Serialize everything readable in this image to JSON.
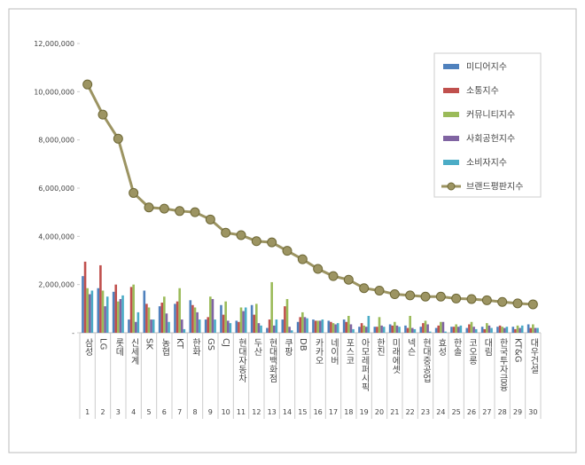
{
  "chart_data": {
    "type": "bar-line",
    "categories": [
      "삼성",
      "LG",
      "롯데",
      "신세계",
      "SK",
      "농협",
      "KT",
      "한화",
      "GS",
      "CJ",
      "현대자동차",
      "두산",
      "현대백화점",
      "쿠팡",
      "DB",
      "카카오",
      "네이버",
      "포스코",
      "아모레퍼시픽",
      "한진",
      "미래에셋",
      "넥슨",
      "현대중공업",
      "효성",
      "한솔",
      "코오롱",
      "대림",
      "한국투자금융",
      "KT&G",
      "대우건설"
    ],
    "ranks": [
      1,
      2,
      3,
      4,
      5,
      6,
      7,
      8,
      9,
      10,
      11,
      12,
      13,
      14,
      15,
      16,
      17,
      18,
      19,
      20,
      21,
      22,
      23,
      24,
      25,
      26,
      27,
      28,
      29,
      30
    ],
    "series": [
      {
        "name": "미디어지수",
        "color": "#4f81bd",
        "values": [
          2350000,
          1850000,
          1700000,
          550000,
          1750000,
          1100000,
          1200000,
          1350000,
          550000,
          1150000,
          500000,
          1150000,
          200000,
          550000,
          450000,
          550000,
          500000,
          550000,
          250000,
          250000,
          350000,
          300000,
          250000,
          200000,
          250000,
          200000,
          250000,
          250000,
          250000,
          350000
        ]
      },
      {
        "name": "소통지수",
        "color": "#c0504d",
        "values": [
          2950000,
          2800000,
          2000000,
          1900000,
          1200000,
          1250000,
          1300000,
          1150000,
          650000,
          750000,
          450000,
          750000,
          550000,
          1100000,
          650000,
          500000,
          450000,
          450000,
          400000,
          250000,
          300000,
          200000,
          400000,
          300000,
          250000,
          350000,
          150000,
          300000,
          150000,
          200000
        ]
      },
      {
        "name": "커뮤니티지수",
        "color": "#9bbb59",
        "values": [
          1850000,
          1750000,
          1300000,
          2000000,
          1050000,
          1500000,
          1850000,
          1050000,
          1500000,
          1300000,
          1050000,
          1200000,
          2100000,
          1400000,
          850000,
          500000,
          400000,
          700000,
          300000,
          650000,
          450000,
          700000,
          500000,
          450000,
          350000,
          450000,
          400000,
          250000,
          300000,
          350000
        ]
      },
      {
        "name": "사회공헌지수",
        "color": "#8064a2",
        "values": [
          1600000,
          1100000,
          1400000,
          450000,
          550000,
          800000,
          550000,
          850000,
          1400000,
          500000,
          900000,
          400000,
          300000,
          250000,
          650000,
          500000,
          350000,
          350000,
          250000,
          300000,
          300000,
          200000,
          350000,
          450000,
          250000,
          250000,
          300000,
          200000,
          200000,
          200000
        ]
      },
      {
        "name": "소비자지수",
        "color": "#4bacc6",
        "values": [
          1750000,
          1500000,
          1550000,
          850000,
          550000,
          450000,
          150000,
          550000,
          550000,
          400000,
          1050000,
          300000,
          550000,
          100000,
          600000,
          550000,
          400000,
          150000,
          700000,
          250000,
          250000,
          150000,
          50000,
          50000,
          300000,
          150000,
          200000,
          250000,
          300000,
          200000
        ]
      },
      {
        "name": "브랜드평판지수",
        "type": "line",
        "color": "#9c9462",
        "values": [
          10300000,
          9050000,
          8050000,
          5800000,
          5200000,
          5150000,
          5050000,
          5000000,
          4700000,
          4150000,
          4050000,
          3800000,
          3750000,
          3400000,
          3050000,
          2650000,
          2350000,
          2200000,
          1850000,
          1750000,
          1600000,
          1550000,
          1500000,
          1500000,
          1420000,
          1400000,
          1350000,
          1280000,
          1220000,
          1180000
        ]
      }
    ],
    "ylim": [
      0,
      12000000
    ],
    "yticks": [
      {
        "value": 0,
        "label": "-"
      },
      {
        "value": 2000000,
        "label": "2,000,000"
      },
      {
        "value": 4000000,
        "label": "4,000,000"
      },
      {
        "value": 6000000,
        "label": "6,000,000"
      },
      {
        "value": 8000000,
        "label": "8,000,000"
      },
      {
        "value": 10000000,
        "label": "10,000,000"
      },
      {
        "value": 12000000,
        "label": "12,000,000"
      }
    ],
    "legend": "top-right"
  }
}
